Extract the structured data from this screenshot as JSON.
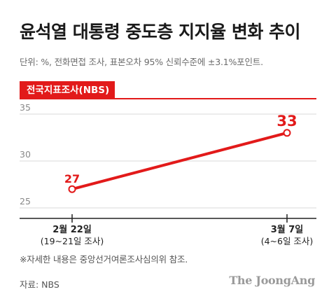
{
  "title": "윤석열 대통령 중도층 지지율 변화 추이",
  "subtitle": "단위: %, 전화면접 조사, 표본오차 95% 신뢰수준에 ±3.1%포인트.",
  "badge": "전국지표조사(NBS)",
  "note": "※자세한 내용은 중앙선거여론조사심의위 참조.",
  "source": "자료: NBS",
  "logo": "The JoongAng",
  "colors": {
    "accent": "#e21a1a",
    "grid": "#d9d9d9",
    "axis": "#222222"
  },
  "chart_data": {
    "type": "line",
    "title": "",
    "xlabel": "",
    "ylabel": "",
    "ylim": [
      25,
      35
    ],
    "yticks": [
      25,
      30,
      35
    ],
    "grid": true,
    "categories": [
      {
        "label": "2월 22일",
        "sublabel": "(19~21일 조사)"
      },
      {
        "label": "3월 7일",
        "sublabel": "(4~6일 조사)"
      }
    ],
    "series": [
      {
        "name": "",
        "values": [
          27,
          33
        ],
        "labels": [
          "27",
          "33"
        ]
      }
    ]
  }
}
